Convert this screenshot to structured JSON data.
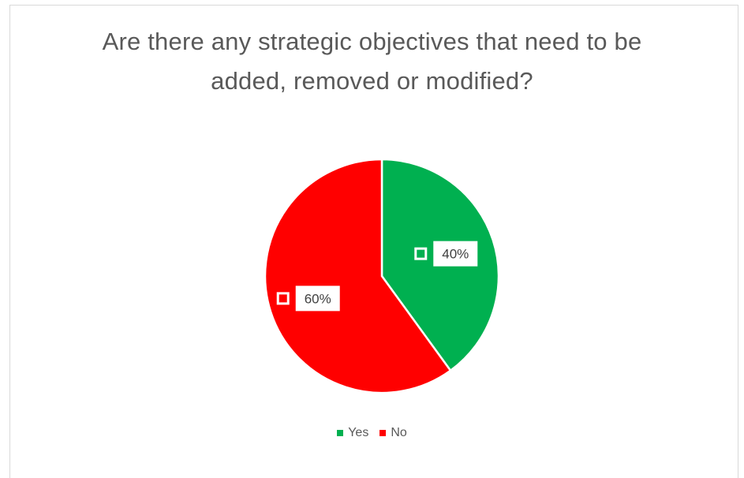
{
  "chart_data": {
    "type": "pie",
    "title": "Are there any strategic objectives that need to be added, removed or modified?",
    "title_lines": [
      "Are there any strategic objectives that need to be",
      "added, removed or modified?"
    ],
    "categories": [
      "Yes",
      "No"
    ],
    "values": [
      40,
      60
    ],
    "data_labels": [
      "40%",
      "60%"
    ],
    "colors": [
      "#00B050",
      "#FF0000"
    ],
    "legend_position": "bottom",
    "start_angle_deg": 0,
    "direction": "clockwise"
  }
}
